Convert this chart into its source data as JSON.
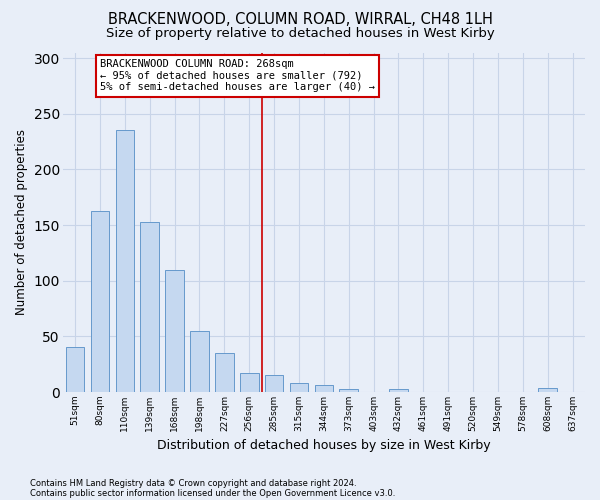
{
  "title1": "BRACKENWOOD, COLUMN ROAD, WIRRAL, CH48 1LH",
  "title2": "Size of property relative to detached houses in West Kirby",
  "xlabel": "Distribution of detached houses by size in West Kirby",
  "ylabel": "Number of detached properties",
  "footnote1": "Contains HM Land Registry data © Crown copyright and database right 2024.",
  "footnote2": "Contains public sector information licensed under the Open Government Licence v3.0.",
  "bar_labels": [
    "51sqm",
    "80sqm",
    "110sqm",
    "139sqm",
    "168sqm",
    "198sqm",
    "227sqm",
    "256sqm",
    "285sqm",
    "315sqm",
    "344sqm",
    "373sqm",
    "403sqm",
    "432sqm",
    "461sqm",
    "491sqm",
    "520sqm",
    "549sqm",
    "578sqm",
    "608sqm",
    "637sqm"
  ],
  "bar_values": [
    40,
    163,
    235,
    153,
    110,
    55,
    35,
    17,
    15,
    8,
    6,
    3,
    0,
    3,
    0,
    0,
    0,
    0,
    0,
    4,
    0
  ],
  "bar_color": "#c5d8f0",
  "bar_edge_color": "#6699cc",
  "reference_line_x": 7.5,
  "reference_line_label": "BRACKENWOOD COLUMN ROAD: 268sqm",
  "annotation_line1": "← 95% of detached houses are smaller (792)",
  "annotation_line2": "5% of semi-detached houses are larger (40) →",
  "annotation_box_color": "#ffffff",
  "annotation_box_edge_color": "#cc0000",
  "vline_color": "#cc0000",
  "ylim": [
    0,
    305
  ],
  "yticks": [
    0,
    50,
    100,
    150,
    200,
    250,
    300
  ],
  "background_color": "#e8eef8",
  "grid_color": "#c8d4e8",
  "title1_fontsize": 10.5,
  "title2_fontsize": 9.5,
  "xlabel_fontsize": 9,
  "ylabel_fontsize": 8.5,
  "annotation_fontsize": 7.5
}
